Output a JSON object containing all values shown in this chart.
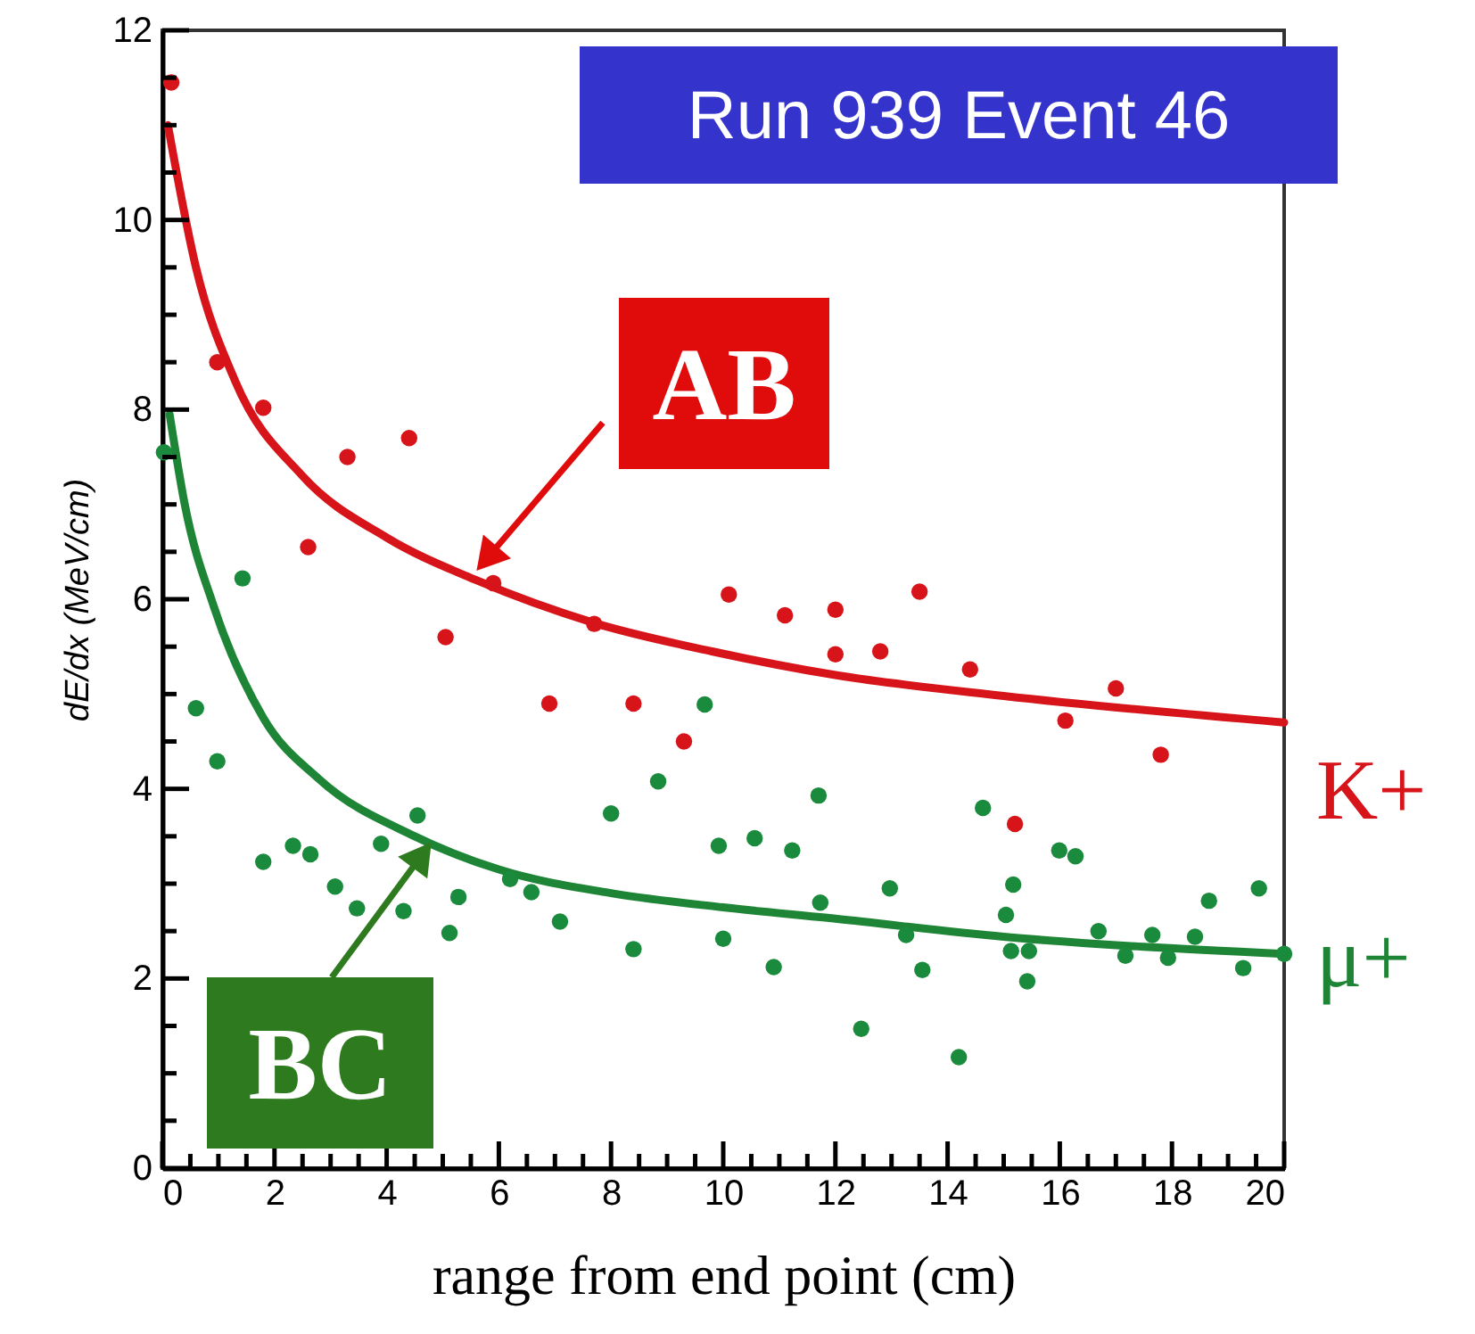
{
  "chart_data": {
    "type": "scatter",
    "xlabel": "range from end point (cm)",
    "ylabel": "dE/dx (MeV/cm)",
    "annotations": [
      "Run 939 Event 46",
      {
        "text": "AB",
        "x": 5.6,
        "y": 6.3
      },
      {
        "text": "BC",
        "x": 4.8,
        "y": 3.44
      }
    ],
    "xlim": [
      0,
      20
    ],
    "ylim": [
      0,
      12
    ],
    "xticks": [
      0,
      {
        "value": 0.5,
        "label": null
      },
      {
        "value": 1,
        "label": null
      },
      {
        "value": 1.5,
        "label": null
      },
      2,
      {
        "value": 2.5,
        "label": null
      },
      {
        "value": 3,
        "label": null
      },
      {
        "value": 3.5,
        "label": null
      },
      4,
      {
        "value": 4.5,
        "label": null
      },
      {
        "value": 5,
        "label": null
      },
      {
        "value": 5.5,
        "label": null
      },
      6,
      {
        "value": 6.5,
        "label": null
      },
      {
        "value": 7,
        "label": null
      },
      {
        "value": 7.5,
        "label": null
      },
      8,
      {
        "value": 8.5,
        "label": null
      },
      {
        "value": 9,
        "label": null
      },
      {
        "value": 9.5,
        "label": null
      },
      10,
      {
        "value": 10.5,
        "label": null
      },
      {
        "value": 11,
        "label": null
      },
      {
        "value": 11.5,
        "label": null
      },
      12,
      {
        "value": 12.5,
        "label": null
      },
      {
        "value": 13,
        "label": null
      },
      {
        "value": 13.5,
        "label": null
      },
      14,
      {
        "value": 14.5,
        "label": null
      },
      {
        "value": 15,
        "label": null
      },
      {
        "value": 15.5,
        "label": null
      },
      16,
      {
        "value": 16.5,
        "label": null
      },
      {
        "value": 17,
        "label": null
      },
      {
        "value": 17.5,
        "label": null
      },
      18,
      {
        "value": 18.5,
        "label": null
      },
      {
        "value": 19,
        "label": null
      },
      {
        "value": 19.5,
        "label": null
      },
      20
    ],
    "yticks": [
      0,
      {
        "value": 0.5,
        "label": null
      },
      {
        "value": 1,
        "label": null
      },
      {
        "value": 1.5,
        "label": null
      },
      2,
      {
        "value": 2.5,
        "label": null
      },
      {
        "value": 3,
        "label": null
      },
      {
        "value": 3.5,
        "label": null
      },
      4,
      {
        "value": 4.5,
        "label": null
      },
      {
        "value": 5,
        "label": null
      },
      {
        "value": 5.5,
        "label": null
      },
      6,
      {
        "value": 6.5,
        "label": null
      },
      {
        "value": 7,
        "label": null
      },
      {
        "value": 7.5,
        "label": null
      },
      8,
      {
        "value": 8.5,
        "label": null
      },
      {
        "value": 9,
        "label": null
      },
      {
        "value": 9.5,
        "label": null
      },
      10,
      {
        "value": 10.5,
        "label": null
      },
      {
        "value": 11,
        "label": null
      },
      {
        "value": 11.5,
        "label": null
      },
      12
    ],
    "grid": false,
    "marker": "circle",
    "line_style": "solid",
    "series": [
      {
        "name": "K+",
        "type": "line",
        "marker": "none",
        "color": "#d7141a",
        "x": [
          0.1,
          0.6,
          1.3,
          2.5,
          4,
          5.6,
          7.7,
          9.8,
          12,
          15,
          20
        ],
        "values": [
          11.0,
          9.5,
          8.3,
          7.3,
          6.65,
          6.2,
          5.75,
          5.45,
          5.2,
          4.98,
          4.7
        ]
      },
      {
        "name": "μ+",
        "type": "line",
        "marker": "none",
        "color": "#1f8536",
        "x": [
          0.13,
          0.4,
          0.92,
          1.8,
          2.8,
          4.5,
          6,
          8,
          10,
          12,
          15,
          20
        ],
        "values": [
          7.95,
          7.0,
          5.92,
          4.75,
          4.1,
          3.5,
          3.15,
          2.9,
          2.75,
          2.63,
          2.44,
          2.26
        ]
      },
      {
        "color": "#d7141a",
        "x": [
          0.16,
          0.98,
          1.8,
          2.6,
          3.3,
          4.4,
          5.05,
          5.9,
          6.9,
          7.7,
          8.4,
          9.3,
          10.1,
          11.1,
          12.0,
          12.0,
          12.8,
          13.5,
          14.4,
          15.2,
          16.1,
          17.0,
          17.8
        ],
        "values": [
          11.45,
          8.5,
          8.02,
          6.55,
          7.5,
          7.7,
          5.6,
          6.17,
          4.9,
          5.74,
          4.9,
          4.5,
          6.05,
          5.83,
          5.89,
          5.42,
          5.45,
          6.08,
          5.26,
          3.63,
          4.72,
          5.06,
          4.36
        ]
      },
      {
        "color": "#1a8a3c",
        "x": [
          0.03,
          0.6,
          0.98,
          1.43,
          1.8,
          2.33,
          2.64,
          3.08,
          3.47,
          3.9,
          4.3,
          4.55,
          5.12,
          5.28,
          6.2,
          6.58,
          7.09,
          8.0,
          8.4,
          8.84,
          9.67,
          9.92,
          10.0,
          10.56,
          10.9,
          11.23,
          11.7,
          11.73,
          12.46,
          12.97,
          13.26,
          13.55,
          14.2,
          14.63,
          15.04,
          15.13,
          15.17,
          15.42,
          15.45,
          15.99,
          16.28,
          16.69,
          17.17,
          17.65,
          17.93,
          18.41,
          18.66,
          19.27,
          19.55,
          20.0
        ],
        "values": [
          7.55,
          4.85,
          4.29,
          6.22,
          3.23,
          3.4,
          3.31,
          2.97,
          2.74,
          3.42,
          2.71,
          3.72,
          2.48,
          2.86,
          3.05,
          2.91,
          2.6,
          3.74,
          2.31,
          4.08,
          4.89,
          3.4,
          2.42,
          3.48,
          2.12,
          3.35,
          3.93,
          2.8,
          1.47,
          2.95,
          2.46,
          2.09,
          1.17,
          3.8,
          2.67,
          2.29,
          2.99,
          1.97,
          2.29,
          3.35,
          3.29,
          2.5,
          2.24,
          2.46,
          2.22,
          2.44,
          2.82,
          2.11,
          2.95,
          2.26
        ]
      }
    ]
  }
}
